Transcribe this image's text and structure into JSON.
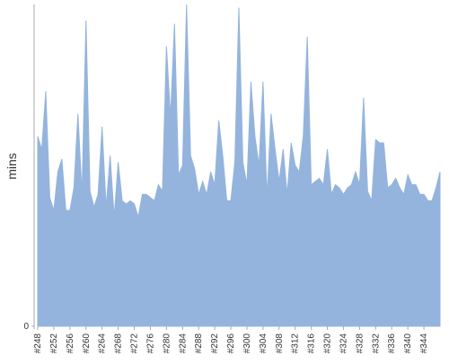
{
  "chart_data": {
    "type": "area",
    "y_label": "mins",
    "color": "#94b4dd",
    "categories": [
      "#248",
      null,
      null,
      null,
      "#252",
      null,
      null,
      null,
      "#256",
      null,
      null,
      null,
      "#260",
      null,
      null,
      null,
      "#264",
      null,
      null,
      null,
      "#268",
      null,
      null,
      null,
      "#272",
      null,
      null,
      null,
      "#276",
      null,
      null,
      null,
      "#280",
      null,
      null,
      null,
      "#284",
      null,
      null,
      null,
      "#288",
      null,
      null,
      null,
      "#292",
      null,
      null,
      null,
      "#296",
      null,
      null,
      null,
      "#300",
      null,
      null,
      null,
      "#304",
      null,
      null,
      null,
      "#308",
      null,
      null,
      null,
      "#312",
      null,
      null,
      null,
      "#316",
      null,
      null,
      null,
      "#320",
      null,
      null,
      null,
      "#324",
      null,
      null,
      null,
      "#328",
      null,
      null,
      null,
      "#332",
      null,
      null,
      null,
      "#336",
      null,
      null,
      null,
      "#340",
      null,
      null,
      null,
      "#344",
      null,
      null,
      null,
      null
    ],
    "values": [
      59,
      55,
      73,
      40,
      36,
      48,
      52,
      36,
      36,
      43,
      66,
      41,
      95,
      42,
      37,
      41,
      62,
      37,
      53,
      34,
      51,
      39,
      38,
      39,
      38,
      34,
      41,
      41,
      40,
      39,
      44,
      42,
      87,
      65,
      94,
      47,
      50,
      100,
      53,
      49,
      41,
      45,
      41,
      48,
      44,
      64,
      53,
      39,
      39,
      51,
      99,
      51,
      44,
      76,
      59,
      50,
      76,
      40,
      66,
      55,
      45,
      55,
      41,
      57,
      50,
      48,
      59,
      90,
      44,
      45,
      46,
      44,
      55,
      41,
      44,
      43,
      41,
      43,
      44,
      48,
      44,
      71,
      42,
      39,
      58,
      57,
      57,
      43,
      44,
      46,
      43,
      41,
      47,
      44,
      44,
      41,
      41,
      39,
      39,
      43,
      48
    ],
    "ylim": [
      0,
      100
    ],
    "yticks": [
      0
    ]
  }
}
